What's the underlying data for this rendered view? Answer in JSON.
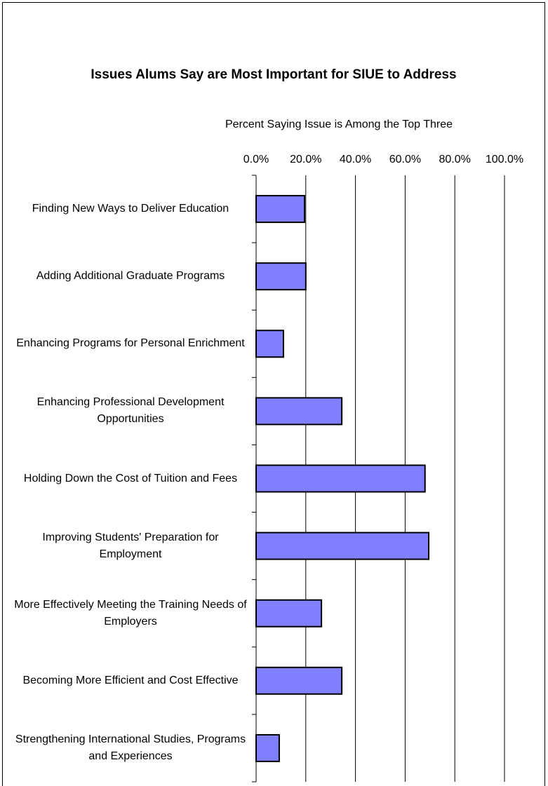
{
  "chart_data": {
    "type": "hbar",
    "title": "Issues Alums Say are Most Important for SIUE to Address",
    "xlabel": "Percent Saying Issue is Among the Top Three",
    "categories": [
      "Finding New Ways to Deliver Education",
      "Adding Additional Graduate Programs",
      "Enhancing Programs for Personal Enrichment",
      "Enhancing Professional Development Opportunities",
      "Holding Down the Cost of Tuition and Fees",
      "Improving Students' Preparation for Employment",
      "More Effectively Meeting the Training Needs of Employers",
      "Becoming More Efficient and Cost Effective",
      "Strengthening International Studies, Programs and Experiences"
    ],
    "values": [
      19.5,
      20,
      11,
      34.5,
      68,
      69.5,
      26.3,
      34.5,
      9.3
    ],
    "color": "#8080ff",
    "xlim": [
      0,
      100
    ],
    "xticks": [
      {
        "value": 0,
        "label": "0.0%"
      },
      {
        "value": 20,
        "label": "20.0%"
      },
      {
        "value": 40,
        "label": "40.0%"
      },
      {
        "value": 60,
        "label": "60.0%"
      },
      {
        "value": 80,
        "label": "80.0%"
      },
      {
        "value": 100,
        "label": "100.0%"
      }
    ],
    "grid": true
  }
}
